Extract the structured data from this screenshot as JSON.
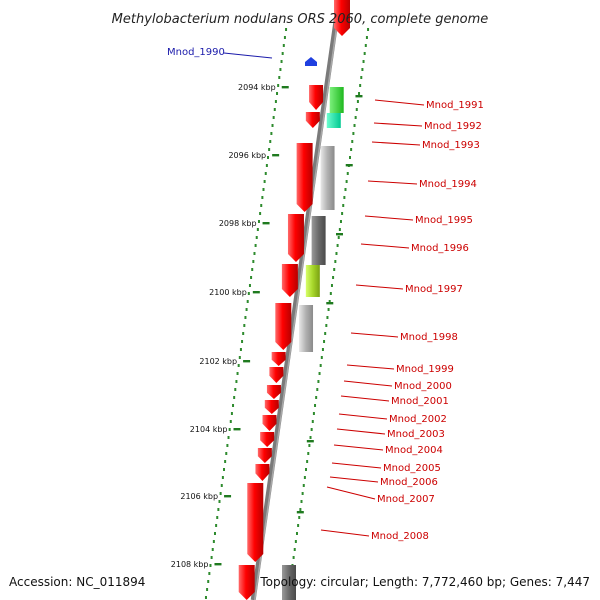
{
  "title": "Methylobacterium nodulans ORS 2060, complete genome",
  "footer": {
    "accession": "Accession: NC_011894",
    "topology": "Topology: circular; Length: 7,772,460 bp; Genes: 7,447"
  },
  "ticks": [
    "2094 kbp",
    "2096 kbp",
    "2098 kbp",
    "2100 kbp",
    "2102 kbp",
    "2104 kbp",
    "2106 kbp",
    "2108 kbp"
  ],
  "colors": {
    "backbone": "#7a7a7a",
    "dot_green": "#2e8b2e",
    "tick_green": "#1f7a1f",
    "gene_red": "#ff0000",
    "label_red": "#cc0000",
    "label_blue": "#1a1aaa",
    "marker_blue": "#1f3fe0"
  },
  "genes": [
    {
      "name": "Mnod_1990",
      "color": "blue"
    },
    {
      "name": "Mnod_1991"
    },
    {
      "name": "Mnod_1992"
    },
    {
      "name": "Mnod_1993"
    },
    {
      "name": "Mnod_1994"
    },
    {
      "name": "Mnod_1995"
    },
    {
      "name": "Mnod_1996"
    },
    {
      "name": "Mnod_1997"
    },
    {
      "name": "Mnod_1998"
    },
    {
      "name": "Mnod_1999"
    },
    {
      "name": "Mnod_2000"
    },
    {
      "name": "Mnod_2001"
    },
    {
      "name": "Mnod_2002"
    },
    {
      "name": "Mnod_2003"
    },
    {
      "name": "Mnod_2004"
    },
    {
      "name": "Mnod_2005"
    },
    {
      "name": "Mnod_2006"
    },
    {
      "name": "Mnod_2007"
    },
    {
      "name": "Mnod_2008"
    }
  ]
}
